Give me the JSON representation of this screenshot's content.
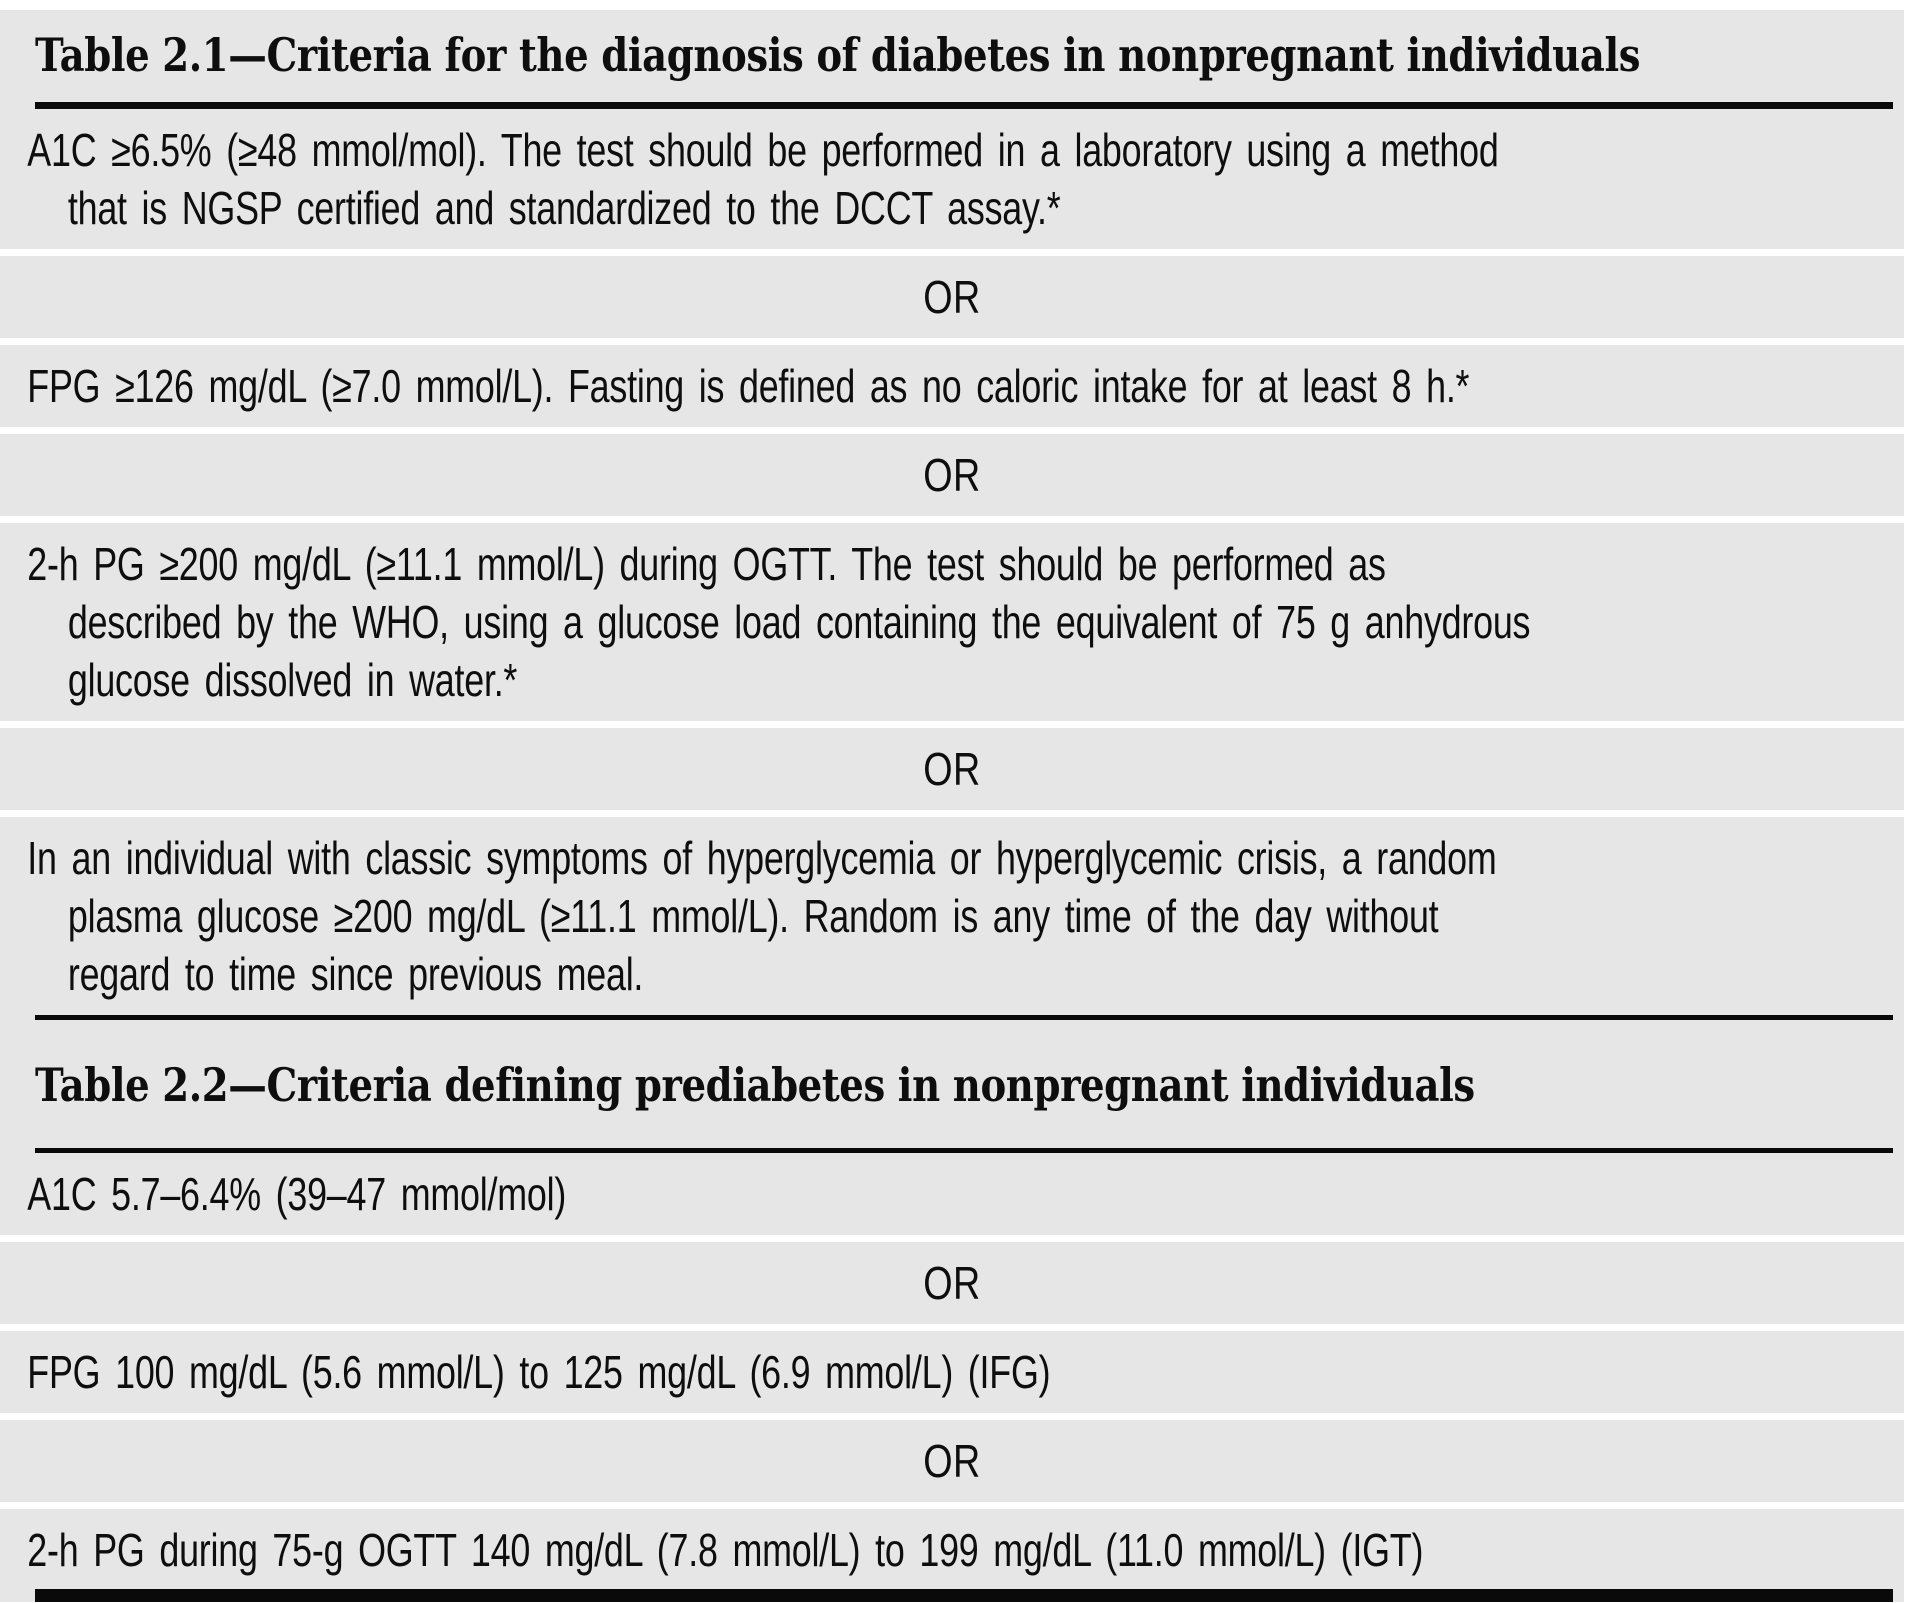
{
  "page": {
    "row_background": "#e6e6e6",
    "page_background": "#ffffff",
    "text_color": "#0e0e0e",
    "rule_color": "#0a0a0a",
    "or_label": "OR"
  },
  "tables": [
    {
      "title": "Table 2.1—Criteria for the diagnosis of diabetes in nonpregnant individuals",
      "rows": [
        {
          "type": "criterion",
          "lines": [
            "A1C ≥6.5% (≥48 mmol/mol). The test should be performed in a laboratory using a method",
            "that is NGSP certified and standardized to the DCCT assay.*"
          ]
        },
        {
          "type": "or",
          "text": "OR"
        },
        {
          "type": "criterion",
          "lines": [
            "FPG ≥126 mg/dL (≥7.0 mmol/L). Fasting is defined as no caloric intake for at least 8 h.*"
          ]
        },
        {
          "type": "or",
          "text": "OR"
        },
        {
          "type": "criterion",
          "lines": [
            "2-h PG ≥200 mg/dL (≥11.1 mmol/L) during OGTT. The test should be performed as",
            "described by the WHO, using a glucose load containing the equivalent of 75 g anhydrous",
            "glucose dissolved in water.*"
          ]
        },
        {
          "type": "or",
          "text": "OR"
        },
        {
          "type": "criterion",
          "lines": [
            "In an individual with classic symptoms of hyperglycemia or hyperglycemic crisis, a random",
            "plasma glucose ≥200 mg/dL (≥11.1 mmol/L). Random is any time of the day without",
            "regard to time since previous meal."
          ]
        }
      ]
    },
    {
      "title": "Table 2.2—Criteria defining prediabetes in nonpregnant individuals",
      "rows": [
        {
          "type": "criterion",
          "lines": [
            "A1C 5.7–6.4% (39–47 mmol/mol)"
          ]
        },
        {
          "type": "or",
          "text": "OR"
        },
        {
          "type": "criterion",
          "lines": [
            "FPG 100 mg/dL (5.6 mmol/L) to 125 mg/dL (6.9 mmol/L) (IFG)"
          ]
        },
        {
          "type": "or",
          "text": "OR"
        },
        {
          "type": "criterion",
          "lines": [
            "2-h PG during 75-g OGTT 140 mg/dL (7.8 mmol/L) to 199 mg/dL (11.0 mmol/L) (IGT)"
          ]
        }
      ]
    }
  ]
}
